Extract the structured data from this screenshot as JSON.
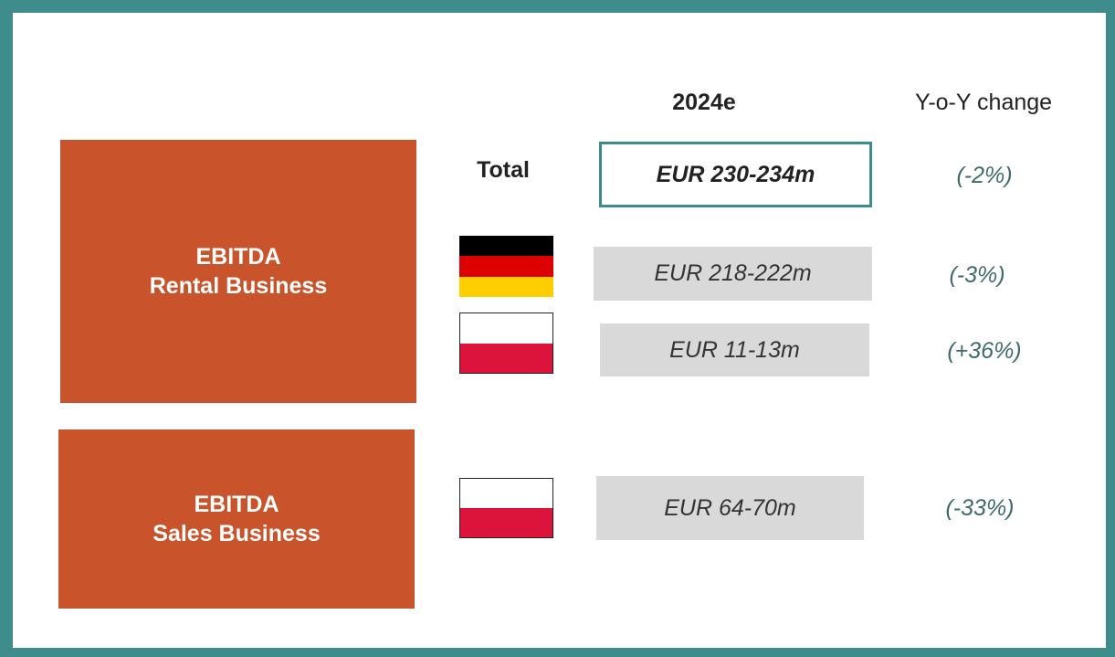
{
  "header": {
    "period": "2024e",
    "change": "Y-o-Y change"
  },
  "segments": [
    {
      "line1": "EBITDA",
      "line2": "Rental Business",
      "rows": [
        {
          "label": "Total",
          "value": "EUR 230-234m",
          "change": "(-2%)"
        },
        {
          "value": "EUR 218-222m",
          "change": "(-3%)"
        },
        {
          "value": "EUR 11-13m",
          "change": "(+36%)"
        }
      ]
    },
    {
      "line1": "EBITDA",
      "line2": "Sales Business",
      "rows": [
        {
          "value": "EUR 64-70m",
          "change": "(-33%)"
        }
      ]
    }
  ]
}
